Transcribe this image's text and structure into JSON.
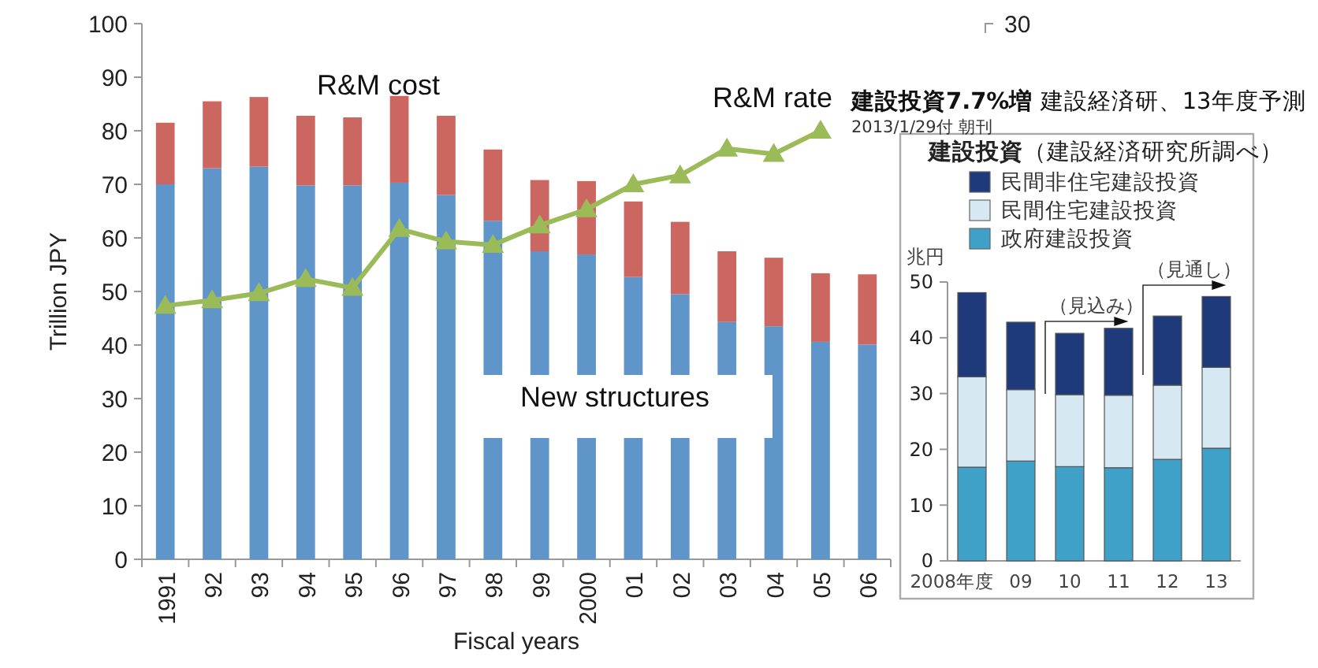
{
  "chart_data": [
    {
      "type": "bar",
      "stacked": true,
      "xlabel": "Fiscal years",
      "ylabel": "Trillion JPY",
      "categories": [
        "1991",
        "92",
        "93",
        "94",
        "95",
        "96",
        "97",
        "98",
        "99",
        "2000",
        "01",
        "02",
        "03",
        "04",
        "05",
        "06"
      ],
      "ylim": [
        0,
        100
      ],
      "yticks": [
        0,
        10,
        20,
        30,
        40,
        50,
        60,
        70,
        80,
        90,
        100
      ],
      "y2lim": [
        0,
        30
      ],
      "y2ticks": [
        30
      ],
      "legend": false,
      "grid": false,
      "series": [
        {
          "name": "New structures",
          "color": "#5f95c9",
          "values": [
            70,
            73,
            73.3,
            69.8,
            69.8,
            70.3,
            68,
            63.2,
            57.5,
            56.9,
            52.7,
            49.5,
            44.3,
            43.5,
            40.6,
            40.1
          ]
        },
        {
          "name": "R&M cost",
          "color": "#cc6660",
          "values": [
            11.5,
            12.5,
            13,
            13,
            12.7,
            16.2,
            14.8,
            13.3,
            13.3,
            13.7,
            14.1,
            13.5,
            13.2,
            12.8,
            12.8,
            13.1
          ]
        },
        {
          "name": "R&M rate",
          "type": "line",
          "axis": "y2",
          "marker": "triangle",
          "line_style": "solid",
          "color": "#9bbb59",
          "values": [
            14.2,
            14.5,
            14.9,
            15.7,
            15.2,
            18.5,
            17.8,
            17.6,
            18.7,
            19.6,
            21.0,
            21.5,
            23.0,
            22.7,
            24.0,
            null
          ]
        }
      ]
    },
    {
      "type": "bar",
      "stacked": true,
      "title": "**建設投資**（建設経済研究所調べ）",
      "ylabel": "兆円",
      "categories": [
        "2008年度",
        "09",
        "10",
        "11",
        "12",
        "13"
      ],
      "ylim": [
        0,
        50
      ],
      "yticks": [
        0,
        10,
        20,
        30,
        40,
        50
      ],
      "legend": "top",
      "grid": false,
      "annotations": [
        "**建設投資7.7%増** 建設経済研、13年度予測",
        "2013/1/29付 朝刊",
        "（見込み）",
        "（見通し）"
      ],
      "series": [
        {
          "name": "政府建設投資",
          "color": "#3fa0c8",
          "values": [
            16.8,
            17.9,
            16.9,
            16.7,
            18.2,
            20.2
          ]
        },
        {
          "name": "民間住宅建設投資",
          "color": "#d6e9f2",
          "values": [
            16.2,
            12.8,
            12.9,
            13.0,
            13.3,
            14.5
          ]
        },
        {
          "name": "民間非住宅建設投資",
          "color": "#1f3a7a",
          "values": [
            15.1,
            12.1,
            11.0,
            12.0,
            12.4,
            12.7
          ]
        }
      ]
    }
  ]
}
